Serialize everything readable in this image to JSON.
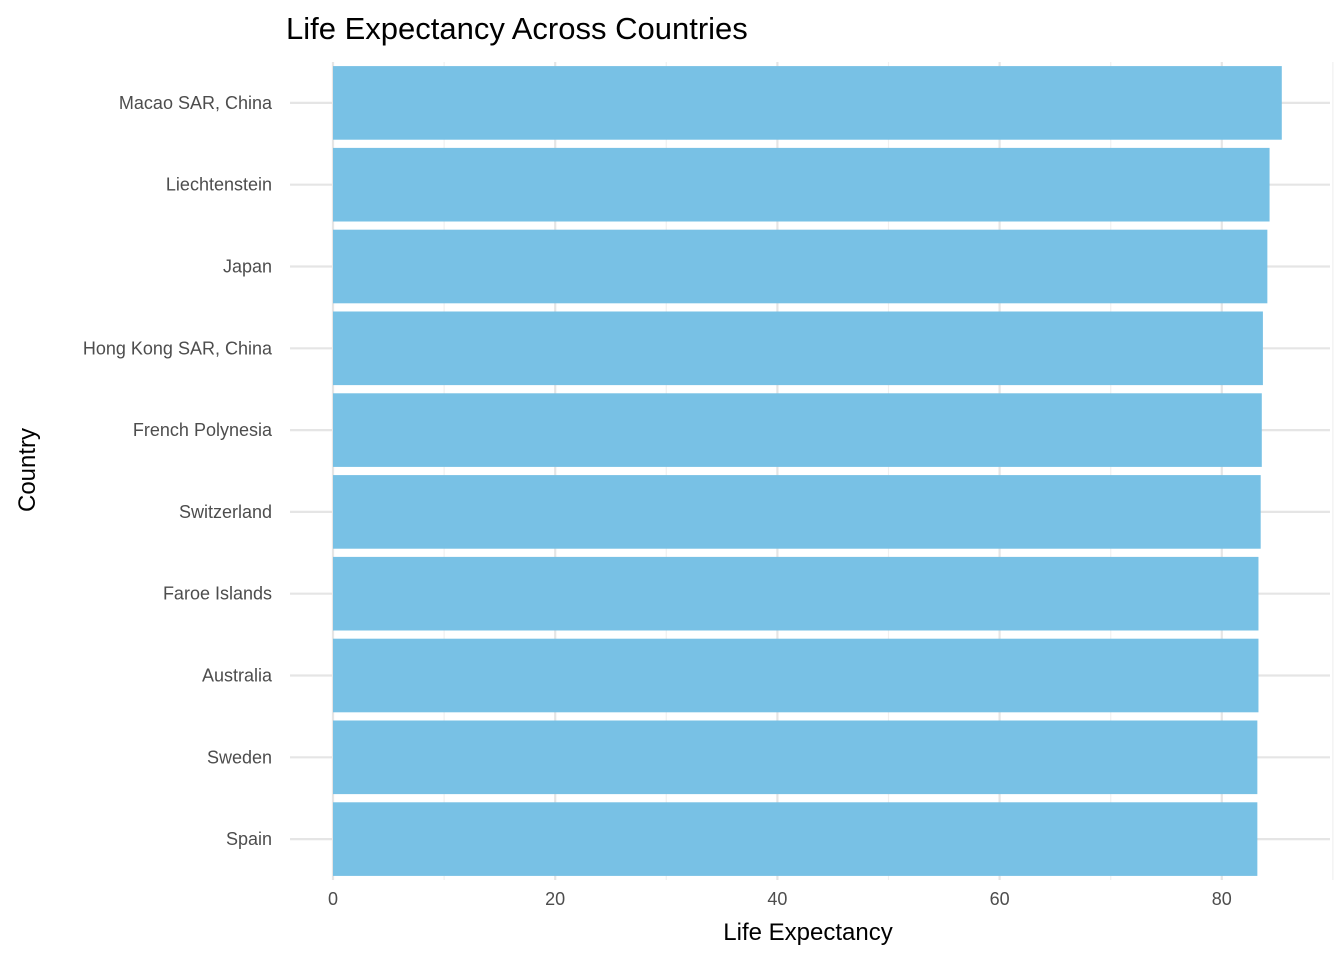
{
  "chart_data": {
    "type": "bar",
    "orientation": "horizontal",
    "title": "Life Expectancy Across Countries",
    "xlabel": "Life Expectancy",
    "ylabel": "Country",
    "categories": [
      "Macao SAR, China",
      "Liechtenstein",
      "Japan",
      "Hong Kong SAR, China",
      "French Polynesia",
      "Switzerland",
      "Faroe Islands",
      "Australia",
      "Sweden",
      "Spain"
    ],
    "values": [
      85.4,
      84.3,
      84.1,
      83.7,
      83.6,
      83.5,
      83.3,
      83.3,
      83.2,
      83.2
    ],
    "xticks": [
      "0",
      "20",
      "40",
      "60",
      "80"
    ],
    "xlim": [
      0,
      89
    ],
    "grid": true,
    "bar_color": "#78C1E5"
  }
}
